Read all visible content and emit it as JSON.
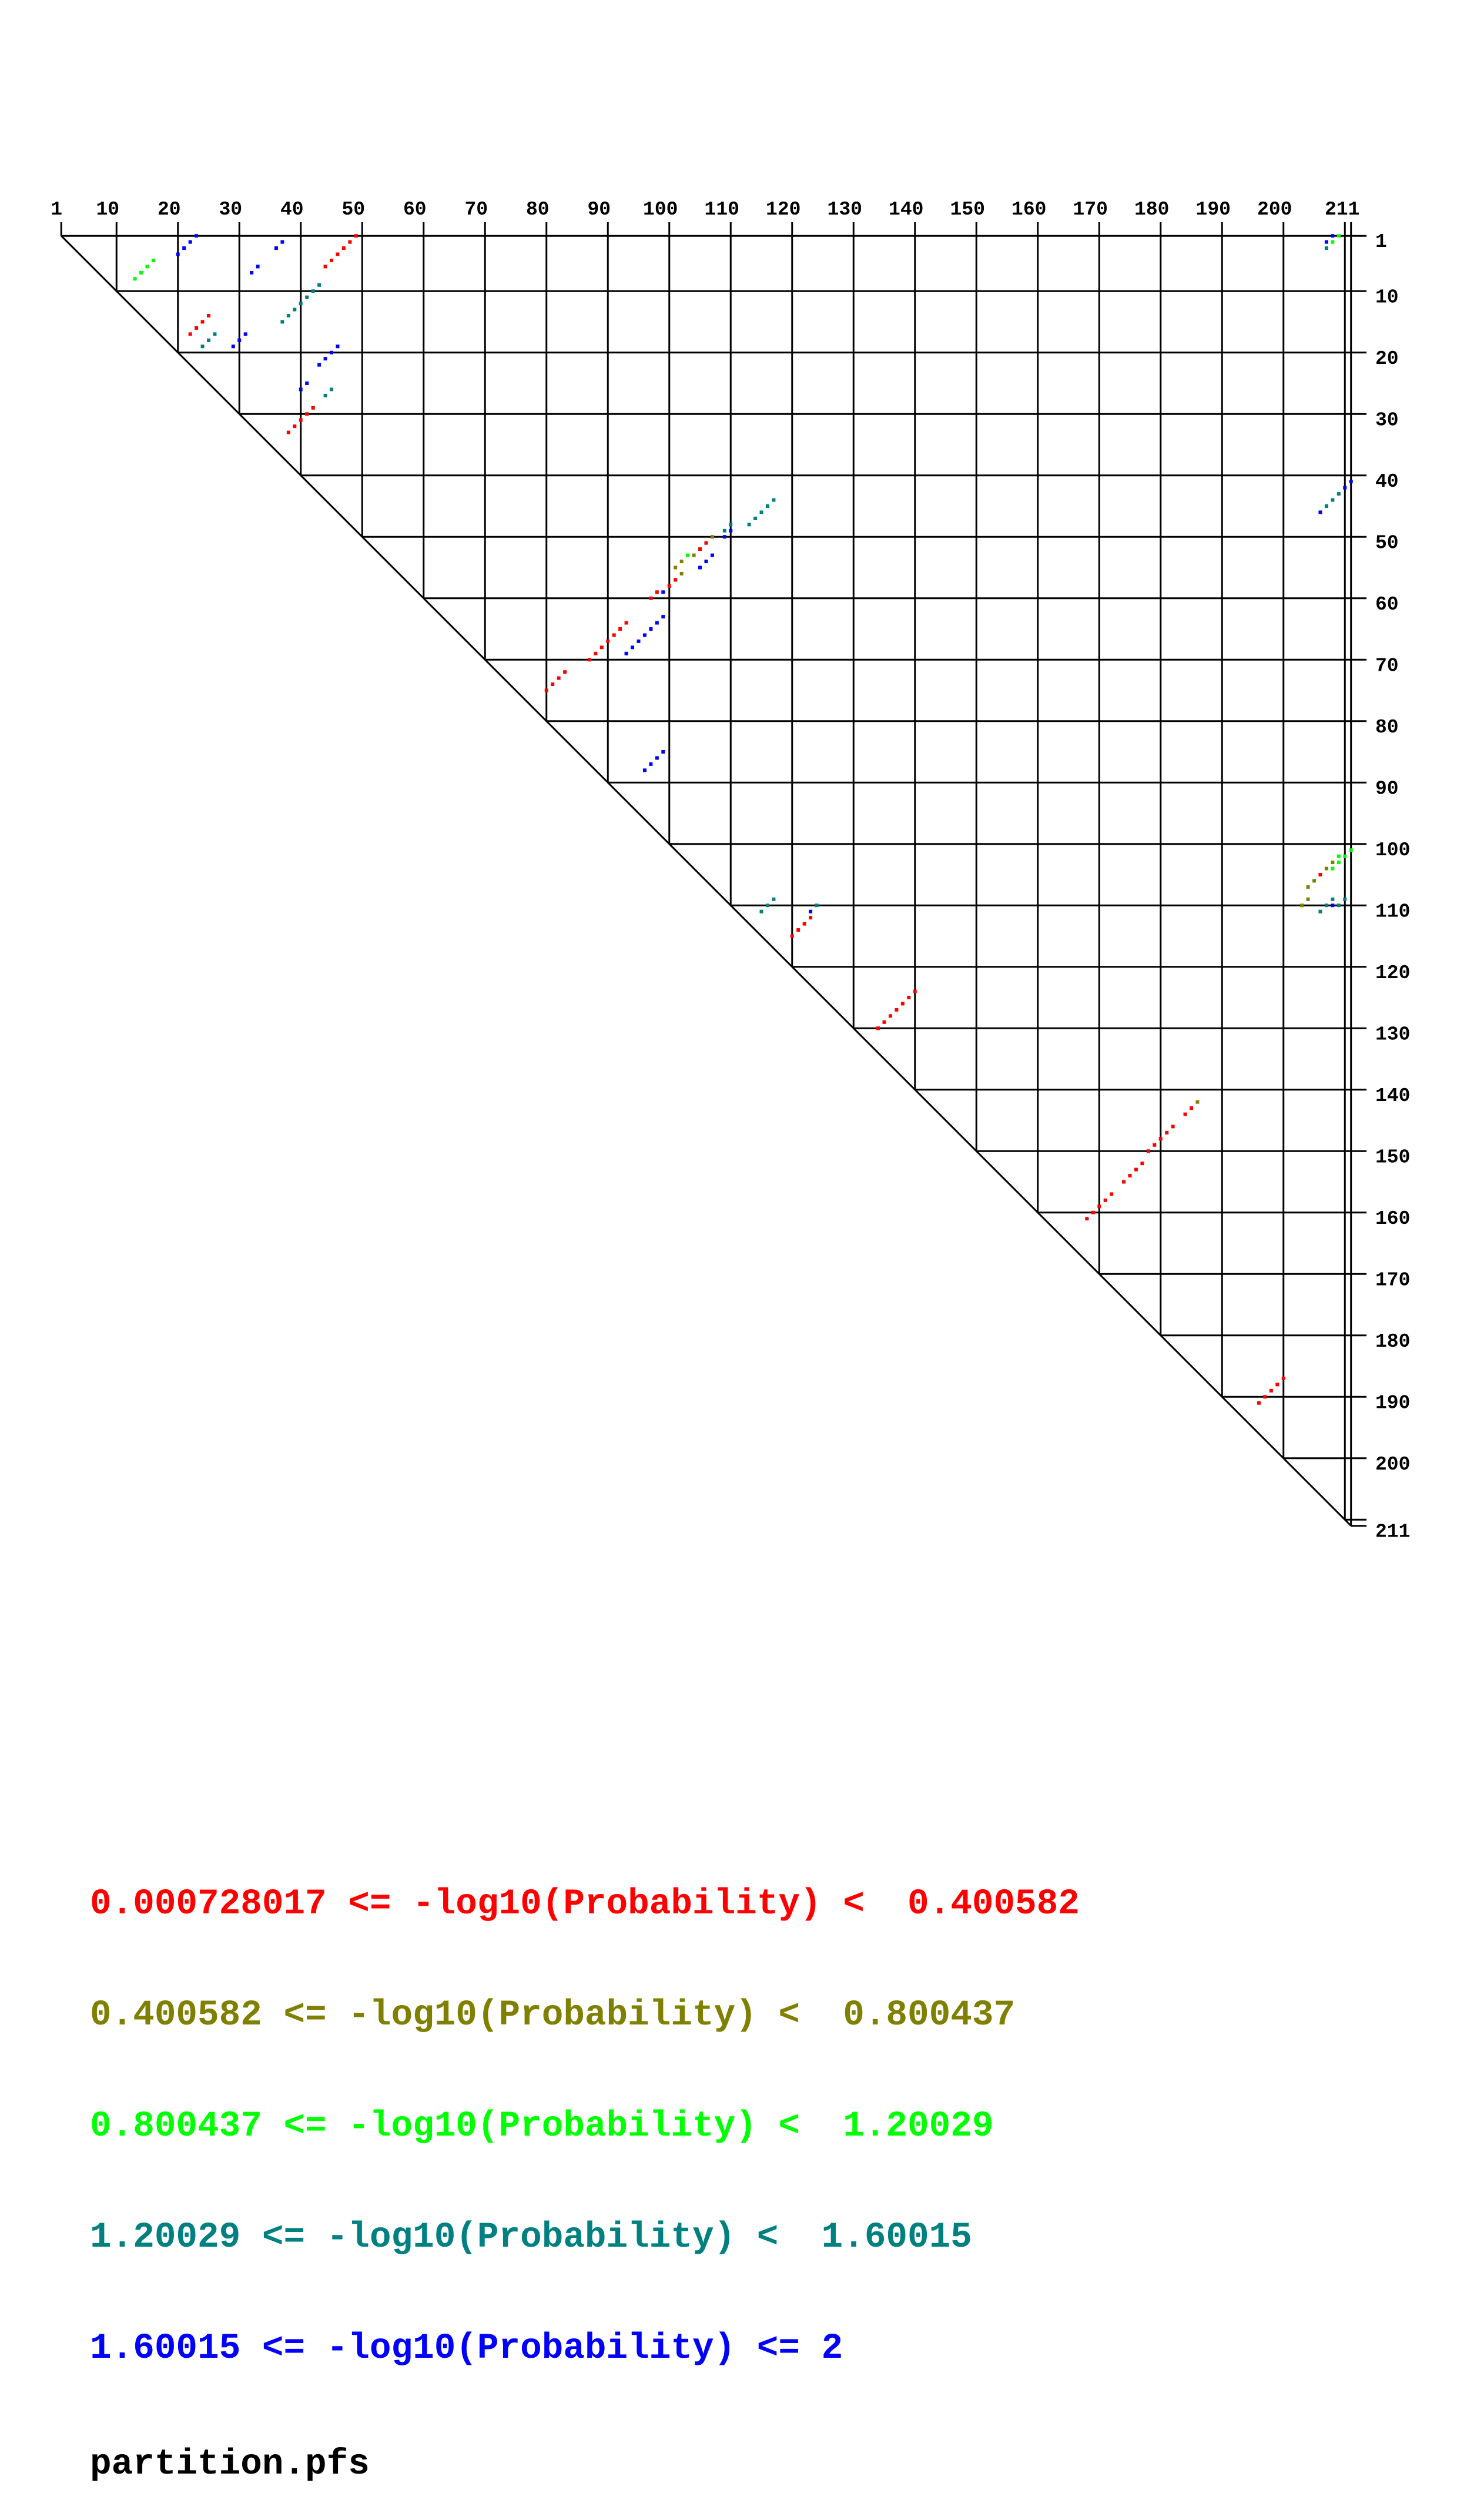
{
  "chart_data": {
    "type": "scatter",
    "subtype": "triangular-dot-plot",
    "x_axis": {
      "position": "top",
      "range": [
        1,
        211
      ],
      "tick_labels": [
        "1",
        "10",
        "20",
        "30",
        "40",
        "50",
        "60",
        "70",
        "80",
        "90",
        "100",
        "110",
        "120",
        "130",
        "140",
        "150",
        "160",
        "170",
        "180",
        "190",
        "200",
        "211"
      ]
    },
    "y_axis": {
      "position": "right",
      "range": [
        1,
        211
      ],
      "inverted": true,
      "tick_labels": [
        "1",
        "10",
        "20",
        "30",
        "40",
        "50",
        "60",
        "70",
        "80",
        "90",
        "100",
        "110",
        "120",
        "130",
        "140",
        "150",
        "160",
        "170",
        "180",
        "190",
        "200",
        "211"
      ]
    },
    "grid": true,
    "legend_placement": "bottom-left",
    "point_format": "[row_i, column_j]",
    "bins": [
      {
        "label": "0.000728017 <= -log10(Probability) <  0.400582",
        "color": "#ff0000",
        "points": [
          [
            1,
            49
          ],
          [
            2,
            48
          ],
          [
            3,
            47
          ],
          [
            4,
            46
          ],
          [
            5,
            45
          ],
          [
            6,
            44
          ],
          [
            14,
            25
          ],
          [
            15,
            24
          ],
          [
            16,
            23
          ],
          [
            17,
            22
          ],
          [
            29,
            42
          ],
          [
            30,
            41
          ],
          [
            31,
            40
          ],
          [
            32,
            39
          ],
          [
            33,
            38
          ],
          [
            51,
            106
          ],
          [
            52,
            105
          ],
          [
            57,
            101
          ],
          [
            58,
            100
          ],
          [
            59,
            98
          ],
          [
            60,
            97
          ],
          [
            64,
            93
          ],
          [
            65,
            92
          ],
          [
            66,
            91
          ],
          [
            67,
            90
          ],
          [
            68,
            89
          ],
          [
            69,
            88
          ],
          [
            70,
            87
          ],
          [
            72,
            83
          ],
          [
            73,
            82
          ],
          [
            74,
            81
          ],
          [
            75,
            80
          ],
          [
            112,
            123
          ],
          [
            113,
            122
          ],
          [
            114,
            121
          ],
          [
            115,
            120
          ],
          [
            124,
            140
          ],
          [
            125,
            139
          ],
          [
            126,
            138
          ],
          [
            127,
            137
          ],
          [
            128,
            136
          ],
          [
            129,
            135
          ],
          [
            130,
            134
          ],
          [
            143,
            185
          ],
          [
            144,
            184
          ],
          [
            146,
            182
          ],
          [
            147,
            181
          ],
          [
            148,
            180
          ],
          [
            149,
            179
          ],
          [
            150,
            178
          ],
          [
            152,
            177
          ],
          [
            153,
            176
          ],
          [
            154,
            175
          ],
          [
            155,
            174
          ],
          [
            157,
            172
          ],
          [
            158,
            171
          ],
          [
            159,
            170
          ],
          [
            160,
            169
          ],
          [
            161,
            168
          ],
          [
            187,
            200
          ],
          [
            188,
            199
          ],
          [
            189,
            198
          ],
          [
            190,
            197
          ],
          [
            191,
            196
          ],
          [
            105,
            206
          ]
        ]
      },
      {
        "label": "0.400582 <= -log10(Probability) <  0.800437",
        "color": "#808000",
        "points": [
          [
            50,
            107
          ],
          [
            53,
            104
          ],
          [
            54,
            102
          ],
          [
            55,
            101
          ],
          [
            56,
            102
          ],
          [
            142,
            186
          ],
          [
            103,
            208
          ],
          [
            104,
            207
          ],
          [
            106,
            205
          ],
          [
            107,
            204
          ],
          [
            109,
            204
          ],
          [
            110,
            203
          ]
        ]
      },
      {
        "label": "0.800437 <= -log10(Probability) <  1.20029",
        "color": "#00ff00",
        "points": [
          [
            5,
            16
          ],
          [
            6,
            15
          ],
          [
            7,
            14
          ],
          [
            8,
            13
          ],
          [
            53,
            103
          ],
          [
            1,
            209
          ],
          [
            2,
            208
          ],
          [
            101,
            211
          ],
          [
            102,
            209
          ],
          [
            102,
            210
          ],
          [
            103,
            209
          ],
          [
            104,
            208
          ]
        ]
      },
      {
        "label": "1.20029 <= -log10(Probability) <  1.60015",
        "color": "#008080",
        "points": [
          [
            9,
            43
          ],
          [
            10,
            42
          ],
          [
            11,
            41
          ],
          [
            12,
            40
          ],
          [
            13,
            39
          ],
          [
            14,
            38
          ],
          [
            15,
            37
          ],
          [
            17,
            26
          ],
          [
            18,
            25
          ],
          [
            19,
            24
          ],
          [
            26,
            45
          ],
          [
            27,
            44
          ],
          [
            44,
            117
          ],
          [
            45,
            116
          ],
          [
            46,
            115
          ],
          [
            47,
            114
          ],
          [
            48,
            113
          ],
          [
            48,
            110
          ],
          [
            49,
            109
          ],
          [
            109,
            117
          ],
          [
            110,
            116
          ],
          [
            111,
            115
          ],
          [
            110,
            124
          ],
          [
            3,
            207
          ],
          [
            43,
            209
          ],
          [
            44,
            208
          ],
          [
            45,
            207
          ],
          [
            109,
            208
          ],
          [
            109,
            210
          ],
          [
            110,
            207
          ],
          [
            110,
            209
          ],
          [
            111,
            206
          ]
        ]
      },
      {
        "label": "1.60015 <= -log10(Probability) <= 2",
        "color": "#0000ff",
        "points": [
          [
            1,
            23
          ],
          [
            2,
            22
          ],
          [
            3,
            21
          ],
          [
            4,
            20
          ],
          [
            2,
            37
          ],
          [
            3,
            36
          ],
          [
            6,
            33
          ],
          [
            7,
            32
          ],
          [
            17,
            31
          ],
          [
            18,
            30
          ],
          [
            19,
            29
          ],
          [
            19,
            46
          ],
          [
            20,
            45
          ],
          [
            21,
            44
          ],
          [
            22,
            43
          ],
          [
            25,
            41
          ],
          [
            26,
            40
          ],
          [
            49,
            110
          ],
          [
            50,
            109
          ],
          [
            53,
            107
          ],
          [
            54,
            106
          ],
          [
            55,
            105
          ],
          [
            59,
            99
          ],
          [
            63,
            99
          ],
          [
            64,
            98
          ],
          [
            65,
            97
          ],
          [
            66,
            96
          ],
          [
            67,
            95
          ],
          [
            68,
            94
          ],
          [
            69,
            93
          ],
          [
            85,
            99
          ],
          [
            86,
            98
          ],
          [
            87,
            97
          ],
          [
            88,
            96
          ],
          [
            111,
            123
          ],
          [
            1,
            208
          ],
          [
            2,
            207
          ],
          [
            41,
            211
          ],
          [
            42,
            210
          ],
          [
            46,
            206
          ],
          [
            110,
            208
          ]
        ]
      }
    ],
    "footer": "partition.pfs"
  }
}
